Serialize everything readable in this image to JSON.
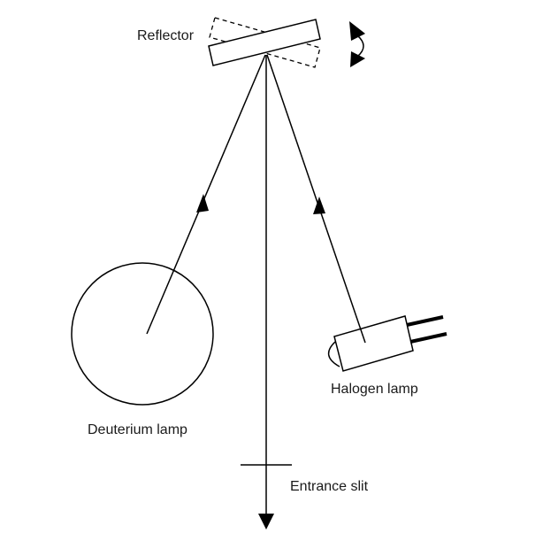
{
  "labels": {
    "reflector": "Reflector",
    "halogen_lamp": "Halogen lamp",
    "deuterium_lamp": "Deuterium lamp",
    "entrance_slit": "Entrance slit"
  },
  "colors": {
    "stroke": "#000000",
    "background": "#ffffff"
  }
}
